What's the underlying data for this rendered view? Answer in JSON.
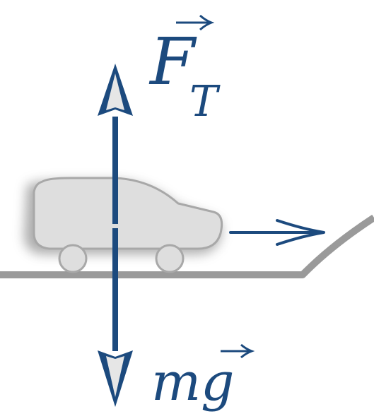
{
  "labels": {
    "upward_force": {
      "main": "F",
      "subscript": "T",
      "has_vector_arrow": true
    },
    "weight": {
      "main": "mg",
      "has_vector_arrow": true
    }
  },
  "colors": {
    "force_arrow": "#1c4a7e",
    "car_fill": "#dedede",
    "car_outline": "#a8a8a8",
    "car_shadow": "#6a6a6a",
    "ground": "#9a9a9a",
    "motion_arrow": "#1c4a7e"
  },
  "icons": {
    "vehicle": "car-side-icon",
    "motion": "right-arrow-icon"
  }
}
